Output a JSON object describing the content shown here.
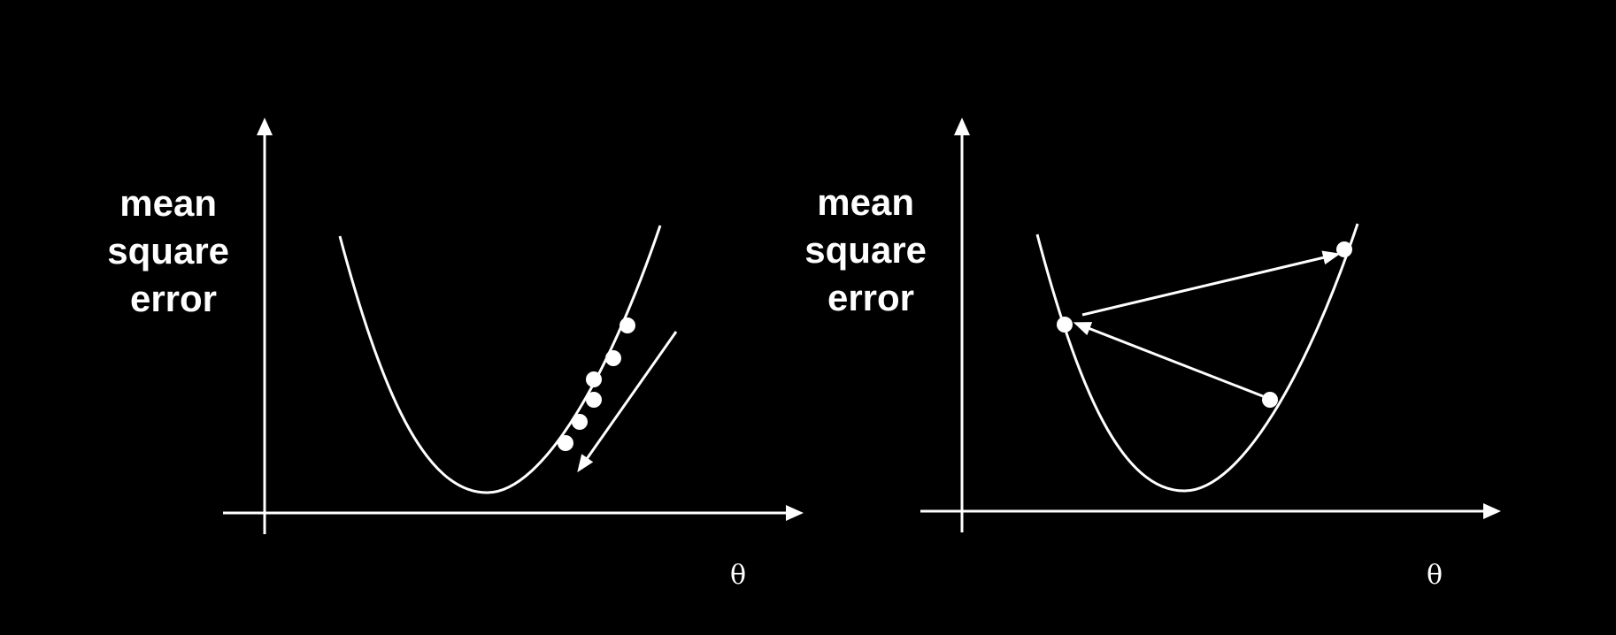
{
  "panels": [
    {
      "id": "small-steps",
      "ylabel": [
        "mean",
        "square",
        "error"
      ],
      "xlabel": "θ",
      "curve": "quadratic",
      "point_count": 6,
      "step_direction": "down-left toward minimum"
    },
    {
      "id": "large-steps",
      "ylabel": [
        "mean",
        "square",
        "error"
      ],
      "xlabel": "θ",
      "curve": "quadratic",
      "point_count": 3,
      "step_direction": "oscillating away from minimum"
    }
  ],
  "colors": {
    "background": "#000000",
    "foreground": "#ffffff"
  }
}
